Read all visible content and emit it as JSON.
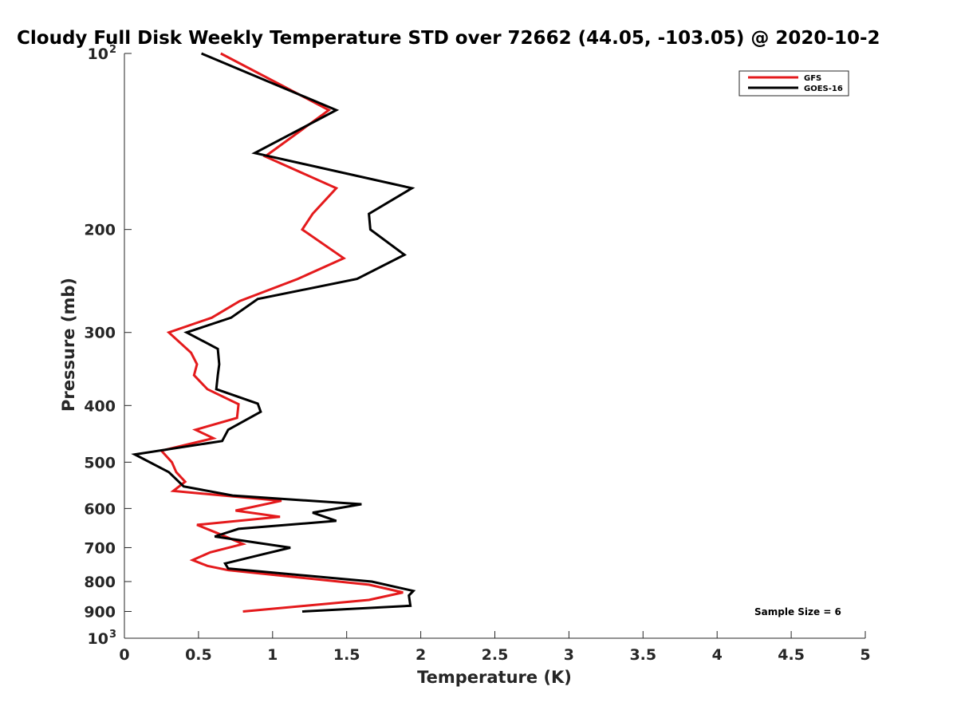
{
  "chart_data": {
    "type": "line",
    "title": "Cloudy Full Disk Weekly Temperature STD over 72662 (44.05, -103.05) @ 2020-10-2",
    "xlabel": "Temperature (K)",
    "ylabel": "Pressure (mb)",
    "xlim": [
      0,
      5
    ],
    "ylim": [
      100,
      1000
    ],
    "y_scale": "log",
    "y_reversed": true,
    "x_ticks": [
      "0",
      "0.5",
      "1",
      "1.5",
      "2",
      "2.5",
      "3",
      "3.5",
      "4",
      "4.5",
      "5"
    ],
    "y_ticks": [
      {
        "value": 100,
        "base": "10",
        "exp": "2"
      },
      {
        "value": 200,
        "label": "200"
      },
      {
        "value": 300,
        "label": "300"
      },
      {
        "value": 400,
        "label": "400"
      },
      {
        "value": 500,
        "label": "500"
      },
      {
        "value": 600,
        "label": "600"
      },
      {
        "value": 700,
        "label": "700"
      },
      {
        "value": 800,
        "label": "800"
      },
      {
        "value": 900,
        "label": "900"
      },
      {
        "value": 1000,
        "base": "10",
        "exp": "3"
      }
    ],
    "grid": false,
    "legend_position": "top-right",
    "annotation": "Sample Size = 6",
    "series": [
      {
        "name": "GFS",
        "color": "#e41a1c",
        "points": [
          [
            0.65,
            100
          ],
          [
            1.38,
            125
          ],
          [
            0.95,
            150
          ],
          [
            1.43,
            170
          ],
          [
            1.27,
            188
          ],
          [
            1.2,
            200
          ],
          [
            1.48,
            224
          ],
          [
            1.17,
            243
          ],
          [
            0.78,
            265
          ],
          [
            0.59,
            283
          ],
          [
            0.3,
            300
          ],
          [
            0.45,
            325
          ],
          [
            0.49,
            340
          ],
          [
            0.47,
            355
          ],
          [
            0.56,
            375
          ],
          [
            0.77,
            398
          ],
          [
            0.76,
            420
          ],
          [
            0.48,
            440
          ],
          [
            0.6,
            455
          ],
          [
            0.25,
            478
          ],
          [
            0.32,
            500
          ],
          [
            0.35,
            520
          ],
          [
            0.41,
            540
          ],
          [
            0.33,
            560
          ],
          [
            1.06,
            582
          ],
          [
            0.75,
            605
          ],
          [
            1.05,
            620
          ],
          [
            0.49,
            640
          ],
          [
            0.62,
            660
          ],
          [
            0.8,
            690
          ],
          [
            0.58,
            713
          ],
          [
            0.46,
            735
          ],
          [
            0.56,
            752
          ],
          [
            0.7,
            765
          ],
          [
            1.65,
            810
          ],
          [
            1.88,
            835
          ],
          [
            1.65,
            860
          ],
          [
            0.8,
            900
          ]
        ]
      },
      {
        "name": "GOES-16",
        "color": "#000000",
        "points": [
          [
            0.52,
            100
          ],
          [
            1.43,
            125
          ],
          [
            0.88,
            148
          ],
          [
            1.94,
            170
          ],
          [
            1.65,
            188
          ],
          [
            1.66,
            200
          ],
          [
            1.89,
            221
          ],
          [
            1.57,
            243
          ],
          [
            0.9,
            263
          ],
          [
            0.72,
            283
          ],
          [
            0.42,
            300
          ],
          [
            0.63,
            320
          ],
          [
            0.64,
            340
          ],
          [
            0.63,
            355
          ],
          [
            0.62,
            375
          ],
          [
            0.9,
            397
          ],
          [
            0.92,
            410
          ],
          [
            0.7,
            440
          ],
          [
            0.66,
            460
          ],
          [
            0.07,
            485
          ],
          [
            0.3,
            520
          ],
          [
            0.4,
            550
          ],
          [
            0.73,
            570
          ],
          [
            1.6,
            590
          ],
          [
            1.27,
            610
          ],
          [
            1.43,
            630
          ],
          [
            0.77,
            650
          ],
          [
            0.61,
            670
          ],
          [
            1.12,
            700
          ],
          [
            0.92,
            720
          ],
          [
            0.68,
            745
          ],
          [
            0.7,
            760
          ],
          [
            1.67,
            800
          ],
          [
            1.95,
            830
          ],
          [
            1.92,
            845
          ],
          [
            1.93,
            880
          ],
          [
            1.2,
            900
          ]
        ]
      }
    ]
  }
}
